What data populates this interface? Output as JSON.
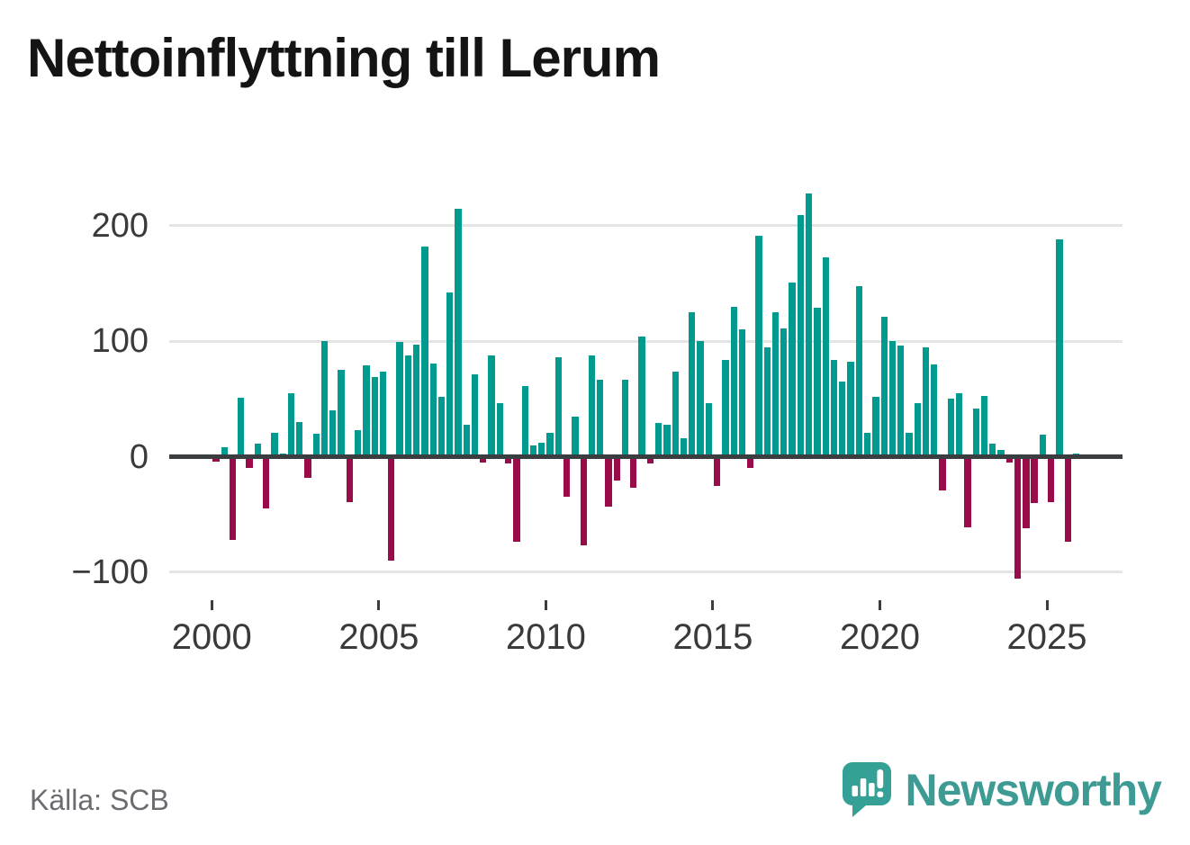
{
  "title": "Nettoinflyttning till Lerum",
  "source": "Källa: SCB",
  "branding": {
    "name": "Newsworthy",
    "logo_icon": "newsworthy-speech-bubble-chart-icon"
  },
  "colors": {
    "positive_bar": "#009b8e",
    "negative_bar": "#9a0b4a",
    "zero_line": "#3a3e41",
    "gridline": "#e4e4e4",
    "axis_text": "#3a3a3a",
    "title_text": "#141414",
    "source_text": "#6b6b72",
    "brand_teal": "#3e9b94"
  },
  "y_axis": {
    "ticks": [
      {
        "label": "200",
        "value": 200
      },
      {
        "label": "100",
        "value": 100
      },
      {
        "label": "0",
        "value": 0
      },
      {
        "label": "−100",
        "value": -100
      }
    ]
  },
  "x_axis": {
    "ticks": [
      {
        "label": "2000",
        "year": 2000
      },
      {
        "label": "2005",
        "year": 2005
      },
      {
        "label": "2010",
        "year": 2010
      },
      {
        "label": "2015",
        "year": 2015
      },
      {
        "label": "2020",
        "year": 2020
      },
      {
        "label": "2025",
        "year": 2025
      }
    ]
  },
  "chart_data": {
    "type": "bar",
    "title": "Nettoinflyttning till Lerum",
    "xlabel": "",
    "ylabel": "",
    "x_unit": "quarter",
    "start_year": 2000,
    "periods_per_year": 4,
    "first_period": "2000 Q1",
    "last_period": "2025 Q4",
    "ylim": [
      -130,
      245
    ],
    "grid": true,
    "legend": false,
    "positive_color": "#009b8e",
    "negative_color": "#9a0b4a",
    "values": [
      -4,
      8,
      -72,
      51,
      -10,
      11,
      -45,
      21,
      3,
      55,
      30,
      -18,
      20,
      100,
      40,
      75,
      -39,
      23,
      79,
      69,
      74,
      -90,
      99,
      88,
      97,
      182,
      81,
      52,
      142,
      215,
      28,
      71,
      -5,
      88,
      46,
      -6,
      -74,
      61,
      10,
      12,
      21,
      86,
      -35,
      35,
      -77,
      88,
      67,
      -43,
      -21,
      67,
      -27,
      104,
      -6,
      29,
      28,
      74,
      16,
      125,
      100,
      46,
      -25,
      84,
      130,
      110,
      -10,
      191,
      95,
      125,
      111,
      151,
      209,
      228,
      129,
      173,
      84,
      65,
      82,
      148,
      21,
      52,
      121,
      100,
      96,
      21,
      46,
      95,
      80,
      -29,
      50,
      55,
      -61,
      42,
      53,
      11,
      6,
      -5,
      -106,
      -62,
      -40,
      19,
      -39,
      188,
      -74,
      3
    ]
  }
}
